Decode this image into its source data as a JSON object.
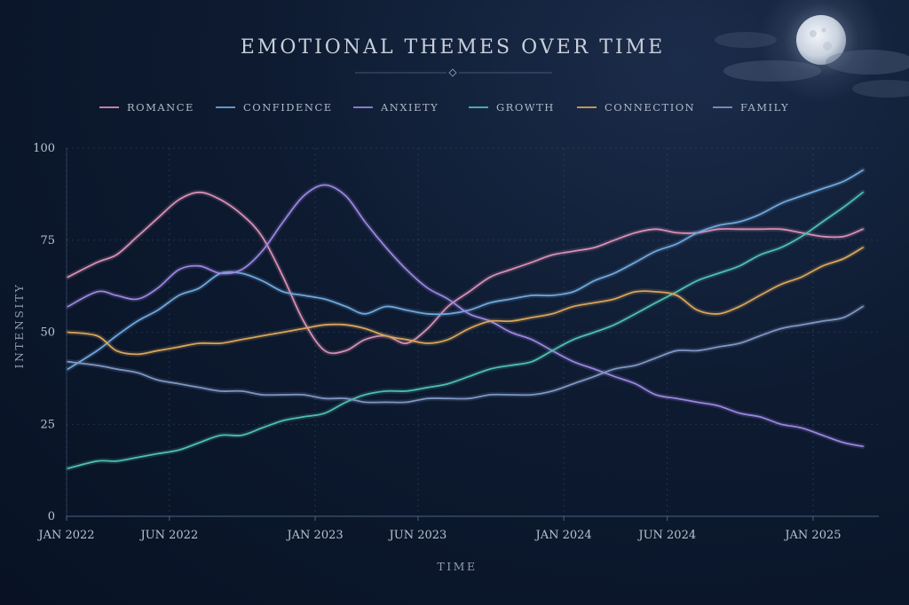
{
  "chart_data": {
    "type": "line",
    "title": "EMOTIONAL THEMES OVER TIME",
    "xlabel": "TIME",
    "ylabel": "INTENSITY",
    "ylim": [
      0,
      100
    ],
    "xlim": [
      "2022-01-01",
      "2025-04-01"
    ],
    "yticks": [
      0,
      25,
      50,
      75,
      100
    ],
    "xticks": [
      {
        "date": "2022-01-01",
        "label": "JAN 2022"
      },
      {
        "date": "2022-06-01",
        "label": "JUN 2022"
      },
      {
        "date": "2023-01-01",
        "label": "JAN 2023"
      },
      {
        "date": "2023-06-01",
        "label": "JUN 2023"
      },
      {
        "date": "2024-01-01",
        "label": "JAN 2024"
      },
      {
        "date": "2024-06-01",
        "label": "JUN 2024"
      },
      {
        "date": "2025-01-01",
        "label": "JAN 2025"
      }
    ],
    "grid": true,
    "legend": "top",
    "x": [
      "2022-01",
      "2022-02",
      "2022-03",
      "2022-04",
      "2022-05",
      "2022-06",
      "2022-07",
      "2022-08",
      "2022-09",
      "2022-10",
      "2022-11",
      "2022-12",
      "2023-01",
      "2023-02",
      "2023-03",
      "2023-04",
      "2023-05",
      "2023-06",
      "2023-07",
      "2023-08",
      "2023-09",
      "2023-10",
      "2023-11",
      "2023-12",
      "2024-01",
      "2024-02",
      "2024-03",
      "2024-04",
      "2024-05",
      "2024-06",
      "2024-07",
      "2024-08",
      "2024-09",
      "2024-10",
      "2024-11",
      "2024-12",
      "2025-01",
      "2025-02",
      "2025-03"
    ],
    "series": [
      {
        "name": "ROMANCE",
        "color": "#d98fb5",
        "values": [
          65,
          69,
          71,
          76,
          81,
          86,
          88,
          86,
          82,
          76,
          65,
          53,
          45,
          45,
          48,
          49,
          47,
          51,
          57,
          61,
          65,
          67,
          69,
          71,
          72,
          73,
          75,
          77,
          78,
          77,
          77,
          78,
          78,
          78,
          78,
          77,
          76,
          76,
          78
        ]
      },
      {
        "name": "CONFIDENCE",
        "color": "#6fa8dc",
        "values": [
          40,
          45,
          49,
          53,
          56,
          60,
          62,
          66,
          66,
          64,
          61,
          60,
          59,
          57,
          55,
          57,
          56,
          55,
          55,
          56,
          58,
          59,
          60,
          60,
          61,
          64,
          66,
          69,
          72,
          74,
          77,
          79,
          80,
          82,
          85,
          87,
          89,
          91,
          94
        ]
      },
      {
        "name": "ANXIETY",
        "color": "#9b85e0",
        "values": [
          57,
          61,
          60,
          59,
          62,
          67,
          68,
          66,
          67,
          72,
          80,
          87,
          90,
          87,
          80,
          73,
          67,
          62,
          59,
          55,
          53,
          50,
          48,
          45,
          42,
          40,
          38,
          36,
          33,
          32,
          31,
          30,
          28,
          27,
          25,
          24,
          22,
          20,
          19
        ]
      },
      {
        "name": "GROWTH",
        "color": "#4fbfb0",
        "values": [
          13,
          15,
          15,
          16,
          17,
          18,
          20,
          22,
          22,
          24,
          26,
          27,
          28,
          31,
          33,
          34,
          34,
          35,
          36,
          38,
          40,
          41,
          42,
          45,
          48,
          50,
          52,
          55,
          58,
          61,
          64,
          66,
          68,
          71,
          73,
          76,
          80,
          84,
          88
        ]
      },
      {
        "name": "CONNECTION",
        "color": "#d9a55a",
        "values": [
          50,
          49,
          45,
          44,
          45,
          46,
          47,
          47,
          48,
          49,
          50,
          51,
          52,
          52,
          51,
          49,
          48,
          47,
          48,
          51,
          53,
          53,
          54,
          55,
          57,
          58,
          59,
          61,
          61,
          60,
          56,
          55,
          57,
          60,
          63,
          65,
          68,
          70,
          73
        ]
      },
      {
        "name": "FAMILY",
        "color": "#7f96c4",
        "values": [
          42,
          41,
          40,
          39,
          37,
          36,
          35,
          34,
          34,
          33,
          33,
          33,
          32,
          32,
          31,
          31,
          31,
          32,
          32,
          32,
          33,
          33,
          33,
          34,
          36,
          38,
          40,
          41,
          43,
          45,
          45,
          46,
          47,
          49,
          51,
          52,
          53,
          54,
          57
        ]
      }
    ]
  },
  "colors": {
    "background": "#0d1a30",
    "grid": "#3d5272",
    "moon": "#dfe5ee"
  },
  "decorations": {
    "moon": "moon-icon",
    "clouds": "cloud-icon"
  }
}
